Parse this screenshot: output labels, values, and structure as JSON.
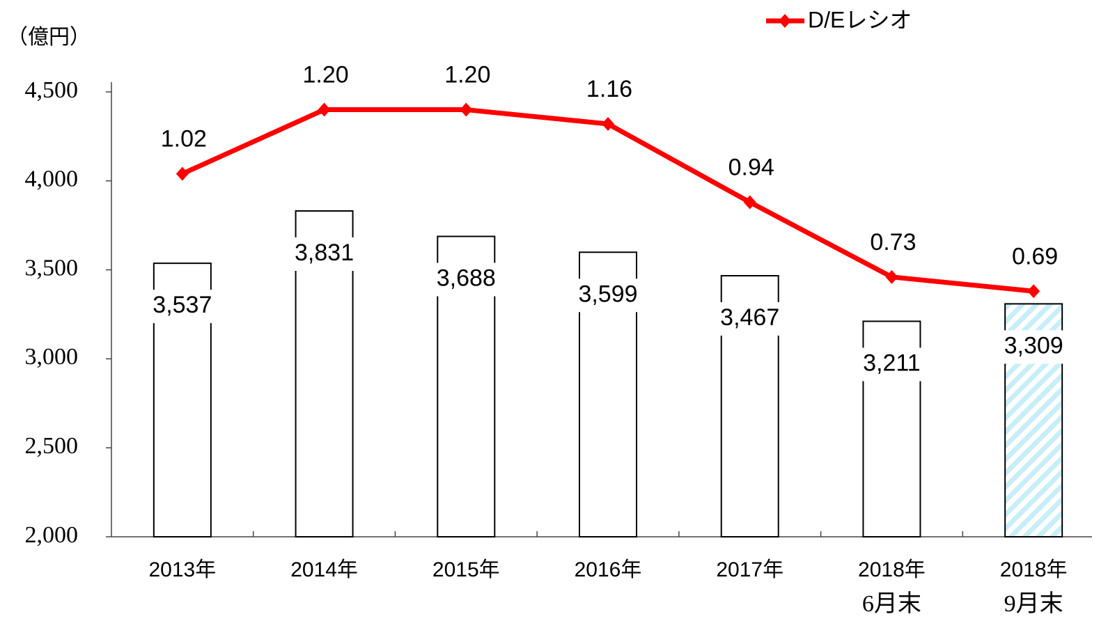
{
  "chart_data": {
    "type": "bar_line",
    "unit_label": "（億円）",
    "categories": [
      "2013年",
      "2014年",
      "2015年",
      "2016年",
      "2017年",
      "2018年",
      "2018年"
    ],
    "sublabels": [
      null,
      null,
      null,
      null,
      null,
      "6月末",
      "9月末"
    ],
    "ylim": [
      2000,
      4500
    ],
    "yticks": [
      {
        "value": 2000,
        "label": "2,000"
      },
      {
        "value": 2500,
        "label": "2,500"
      },
      {
        "value": 3000,
        "label": "3,000"
      },
      {
        "value": 3500,
        "label": "3,500"
      },
      {
        "value": 4000,
        "label": "4,000"
      },
      {
        "value": 4500,
        "label": "4,500"
      }
    ],
    "y2lim": [
      0,
      1.25
    ],
    "series": [
      {
        "name": null,
        "type": "bar",
        "color": "#000000",
        "values": [
          3537,
          3831,
          3688,
          3599,
          3467,
          3211,
          3309
        ],
        "value_labels": [
          "3,537",
          "3,831",
          "3,688",
          "3,599",
          "3,467",
          "3,211",
          "3,309"
        ],
        "patterns": [
          "none",
          "none",
          "none",
          "none",
          "none",
          "none",
          "hatch"
        ]
      },
      {
        "name": "D/Eレシオ",
        "type": "line",
        "axis": "y2",
        "color": "#ff0000",
        "values": [
          1.02,
          1.2,
          1.2,
          1.16,
          0.94,
          0.73,
          0.69
        ],
        "value_labels": [
          "1.02",
          "1.20",
          "1.20",
          "1.16",
          "0.94",
          "0.73",
          "0.69"
        ]
      }
    ],
    "legend": "top-right"
  }
}
